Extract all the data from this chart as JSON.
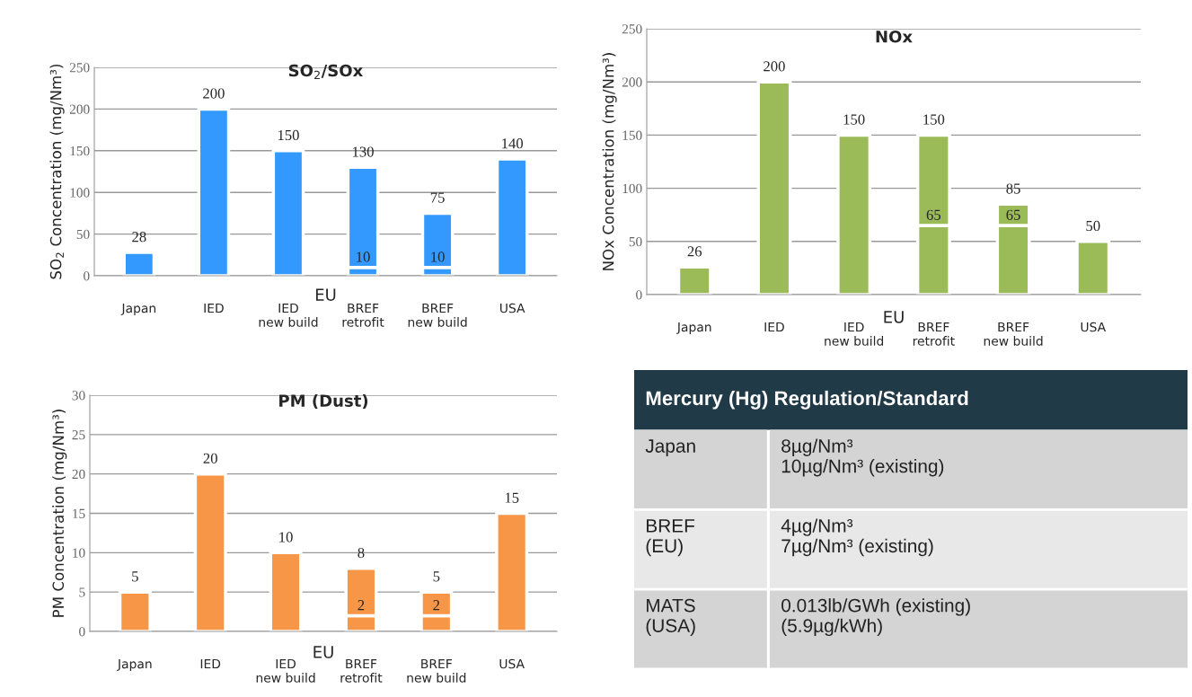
{
  "chart_data": [
    {
      "type": "bar",
      "title": "SO$_{2}$/SOx",
      "ylabel": "SO$_{2}$ Concentration (mg/Nm³)",
      "categories": [
        "Japan",
        "IED",
        "IED\nnew build",
        "BREF\nretrofit",
        "BREF\nnew build",
        "USA"
      ],
      "stacked": true,
      "ylim": [
        0,
        250
      ],
      "yticks": [
        0,
        50,
        100,
        150,
        200,
        250
      ],
      "grid": "y",
      "totals": [
        "28",
        "200",
        "150",
        "130",
        "75",
        "140"
      ],
      "annotations": [
        "EU"
      ],
      "series": [
        {
          "color": "#3399ff",
          "values": [
            null,
            null,
            null,
            10,
            10,
            null
          ],
          "value_labels": [
            null,
            null,
            null,
            "10",
            "10",
            null
          ]
        },
        {
          "color": "#3399ff",
          "values": [
            28,
            200,
            150,
            120,
            65,
            140
          ]
        }
      ]
    },
    {
      "type": "bar",
      "title": "NOx",
      "ylabel": "NOx Concentration (mg/Nm³)",
      "categories": [
        "Japan",
        "IED",
        "IED\nnew build",
        "BREF\nretrofit",
        "BREF\nnew build",
        "USA"
      ],
      "stacked": true,
      "ylim": [
        0,
        250
      ],
      "yticks": [
        0,
        50,
        100,
        150,
        200,
        250
      ],
      "grid": "y",
      "totals": [
        "26",
        "200",
        "150",
        "150",
        "85",
        "50"
      ],
      "annotations": [
        "EU"
      ],
      "series": [
        {
          "color": "#9bbb59",
          "values": [
            null,
            null,
            null,
            65,
            65,
            null
          ],
          "value_labels": [
            null,
            null,
            null,
            "65",
            "65",
            null
          ]
        },
        {
          "color": "#9bbb59",
          "values": [
            26,
            200,
            150,
            85,
            20,
            50
          ]
        }
      ]
    },
    {
      "type": "bar",
      "title": "PM (Dust)",
      "ylabel": "PM Concentration (mg/Nm³)",
      "categories": [
        "Japan",
        "IED",
        "IED\nnew build",
        "BREF\nretrofit",
        "BREF\nnew build",
        "USA"
      ],
      "stacked": true,
      "ylim": [
        0,
        30
      ],
      "yticks": [
        0,
        5,
        10,
        15,
        20,
        25,
        30
      ],
      "grid": "y",
      "totals": [
        "5",
        "20",
        "10",
        "8",
        "5",
        "15"
      ],
      "annotations": [
        "EU"
      ],
      "series": [
        {
          "color": "#f79646",
          "values": [
            null,
            null,
            null,
            2,
            2,
            null
          ],
          "value_labels": [
            null,
            null,
            null,
            "2",
            "2",
            null
          ]
        },
        {
          "color": "#f79646",
          "values": [
            5,
            20,
            10,
            6,
            3,
            15
          ]
        }
      ]
    },
    {
      "type": "other",
      "title": "Mercury (Hg) Regulation/Standard",
      "annotations": [
        "Japan",
        "8µg/Nm³\n10µg/Nm³ (existing)",
        "BREF\n(EU)",
        "4µg/Nm³\n7µg/Nm³ (existing)",
        "MATS\n(USA)",
        "0.013lb/GWh (existing)\n(5.9µg/kWh)"
      ]
    }
  ]
}
